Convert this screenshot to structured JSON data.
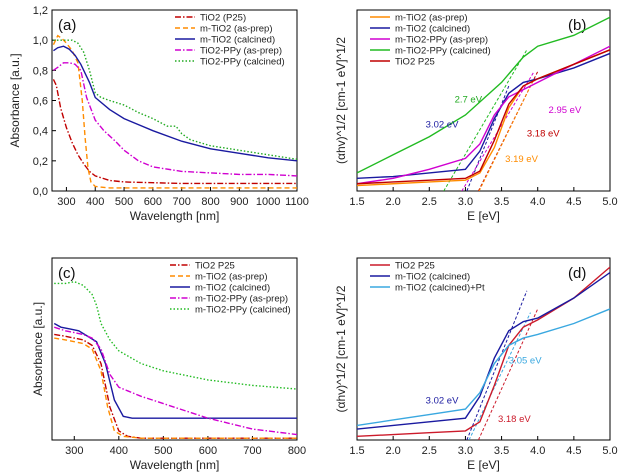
{
  "chart_data": [
    {
      "type": "line",
      "panel_label": "(a)",
      "xlabel": "Wavelength [nm]",
      "ylabel": "Absorbance [a.u.]",
      "xlim": [
        250,
        1100
      ],
      "ylim": [
        0,
        1.2
      ],
      "x_ticks": [
        300,
        400,
        500,
        600,
        700,
        800,
        900,
        1000,
        1100
      ],
      "y_ticks": [
        0.0,
        0.2,
        0.4,
        0.6,
        0.8,
        1.0,
        1.2
      ],
      "x_tick_labels": [
        "300",
        "400",
        "500",
        "600",
        "700",
        "800",
        "900",
        "1000",
        "1100"
      ],
      "y_tick_labels": [
        "0,0",
        "0,2",
        "0,4",
        "0,6",
        "0,8",
        "1,0",
        "1,2"
      ],
      "legend_position": "top-right",
      "series": [
        {
          "name": "TiO2 (P25)",
          "color": "#c00000",
          "dash": "dashdot",
          "x": [
            255,
            265,
            280,
            300,
            320,
            340,
            360,
            380,
            400,
            450,
            500,
            600,
            700,
            800,
            1100
          ],
          "values": [
            0.74,
            0.7,
            0.55,
            0.42,
            0.32,
            0.24,
            0.18,
            0.13,
            0.1,
            0.07,
            0.06,
            0.055,
            0.05,
            0.05,
            0.05
          ]
        },
        {
          "name": "m-TiO2 (as-prep)",
          "color": "#ff8c00",
          "dash": "dash",
          "x": [
            255,
            270,
            285,
            300,
            320,
            340,
            355,
            365,
            375,
            385,
            400,
            450,
            500,
            700,
            1100
          ],
          "values": [
            0.97,
            1.03,
            1.01,
            0.98,
            0.93,
            0.85,
            0.6,
            0.35,
            0.15,
            0.06,
            0.03,
            0.02,
            0.02,
            0.02,
            0.02
          ]
        },
        {
          "name": "m-TiO2 (calcined)",
          "color": "#1a1aa0",
          "dash": "solid",
          "x": [
            255,
            270,
            290,
            310,
            330,
            350,
            380,
            400,
            450,
            500,
            600,
            700,
            800,
            900,
            1000,
            1100
          ],
          "values": [
            0.93,
            0.95,
            0.96,
            0.94,
            0.9,
            0.84,
            0.72,
            0.62,
            0.54,
            0.48,
            0.4,
            0.33,
            0.28,
            0.25,
            0.22,
            0.2
          ]
        },
        {
          "name": "TiO2-PPy (as-prep)",
          "color": "#d000d0",
          "dash": "dashdot",
          "x": [
            255,
            270,
            290,
            310,
            330,
            350,
            370,
            400,
            430,
            470,
            500,
            550,
            600,
            700,
            800,
            900,
            1000,
            1100
          ],
          "values": [
            0.8,
            0.82,
            0.85,
            0.85,
            0.84,
            0.8,
            0.62,
            0.47,
            0.4,
            0.33,
            0.27,
            0.2,
            0.16,
            0.13,
            0.12,
            0.11,
            0.11,
            0.1
          ]
        },
        {
          "name": "TiO2-PPy (calcined)",
          "color": "#22aa22",
          "dash": "dot",
          "x": [
            255,
            275,
            300,
            320,
            340,
            360,
            380,
            400,
            420,
            450,
            500,
            550,
            600,
            650,
            680,
            700,
            730,
            800,
            900,
            1000,
            1100
          ],
          "values": [
            1.0,
            1.0,
            1.0,
            1.0,
            0.98,
            0.92,
            0.8,
            0.65,
            0.62,
            0.6,
            0.57,
            0.52,
            0.48,
            0.43,
            0.43,
            0.38,
            0.34,
            0.3,
            0.27,
            0.24,
            0.21
          ]
        }
      ],
      "annotations": []
    },
    {
      "type": "line",
      "panel_label": "(b)",
      "xlabel": "E [eV]",
      "ylabel": "(αhv)^1/2 [cm-1 eV]^1/2",
      "xlim": [
        1.5,
        5.0
      ],
      "ylim": [
        0,
        1
      ],
      "x_ticks": [
        1.5,
        2.0,
        2.5,
        3.0,
        3.5,
        4.0,
        4.5,
        5.0
      ],
      "x_tick_labels": [
        "1.5",
        "2.0",
        "2.5",
        "3.0",
        "3.5",
        "4.0",
        "4.5",
        "5.0"
      ],
      "legend_position": "top-left",
      "series": [
        {
          "name": "m-TiO2 (as-prep)",
          "color": "#ff8c00",
          "dash": "solid",
          "x": [
            1.5,
            2.0,
            2.5,
            3.0,
            3.2,
            3.4,
            3.6,
            3.8,
            4.0,
            4.5,
            5.0
          ],
          "values": [
            0.03,
            0.04,
            0.05,
            0.06,
            0.1,
            0.24,
            0.46,
            0.58,
            0.62,
            0.7,
            0.78
          ]
        },
        {
          "name": "m-TiO2 (calcined)",
          "color": "#1a1aa0",
          "dash": "solid",
          "x": [
            1.5,
            2.0,
            2.5,
            3.0,
            3.2,
            3.4,
            3.6,
            3.8,
            4.0,
            4.5,
            5.0
          ],
          "values": [
            0.07,
            0.08,
            0.1,
            0.12,
            0.22,
            0.4,
            0.54,
            0.6,
            0.62,
            0.68,
            0.76
          ]
        },
        {
          "name": "m-TiO2-PPy (as-prep)",
          "color": "#d000d0",
          "dash": "solid",
          "x": [
            1.5,
            2.0,
            2.5,
            3.0,
            3.2,
            3.4,
            3.6,
            3.8,
            4.0,
            4.5,
            5.0
          ],
          "values": [
            0.04,
            0.07,
            0.12,
            0.18,
            0.26,
            0.42,
            0.52,
            0.56,
            0.6,
            0.7,
            0.8
          ]
        },
        {
          "name": "m-TiO2-PPy (calcined)",
          "color": "#22bb22",
          "dash": "solid",
          "x": [
            1.5,
            2.0,
            2.5,
            3.0,
            3.5,
            3.8,
            4.0,
            4.5,
            5.0
          ],
          "values": [
            0.1,
            0.2,
            0.3,
            0.42,
            0.6,
            0.74,
            0.8,
            0.86,
            0.96
          ]
        },
        {
          "name": "TiO2 P25",
          "color": "#c00000",
          "dash": "solid",
          "x": [
            1.5,
            2.0,
            2.5,
            3.0,
            3.2,
            3.4,
            3.6,
            3.8,
            4.0,
            4.5,
            5.0
          ],
          "values": [
            0.04,
            0.05,
            0.06,
            0.07,
            0.11,
            0.28,
            0.48,
            0.58,
            0.62,
            0.7,
            0.78
          ]
        }
      ],
      "tangents": [
        {
          "color": "#22bb22",
          "x": [
            2.7,
            3.85
          ],
          "values": [
            0.0,
            0.78
          ]
        },
        {
          "color": "#1a1aa0",
          "x": [
            3.02,
            3.6
          ],
          "values": [
            0.0,
            0.58
          ]
        },
        {
          "color": "#d000d0",
          "x": [
            2.95,
            3.95
          ],
          "values": [
            0.0,
            0.66
          ]
        },
        {
          "color": "#c00000",
          "x": [
            3.18,
            4.0
          ],
          "values": [
            0.0,
            0.66
          ]
        },
        {
          "color": "#ff8c00",
          "x": [
            3.19,
            3.95
          ],
          "values": [
            0.0,
            0.62
          ]
        }
      ],
      "annotations": [
        {
          "text": "2.7 eV",
          "color": "#22aa22",
          "x": 2.85,
          "y": 0.49
        },
        {
          "text": "3.02 eV",
          "color": "#1a1aa0",
          "x": 2.45,
          "y": 0.35
        },
        {
          "text": "2.95 eV",
          "color": "#d000d0",
          "x": 4.15,
          "y": 0.43
        },
        {
          "text": "3.18 eV",
          "color": "#c00000",
          "x": 3.85,
          "y": 0.3
        },
        {
          "text": "3.19 eV",
          "color": "#ff8c00",
          "x": 3.55,
          "y": 0.16
        }
      ]
    },
    {
      "type": "line",
      "panel_label": "(c)",
      "xlabel": "Wavelength [nm]",
      "ylabel": "Absorbance [a.u.]",
      "xlim": [
        250,
        800
      ],
      "ylim": [
        0,
        1
      ],
      "x_ticks": [
        300,
        400,
        500,
        600,
        700,
        800
      ],
      "x_tick_labels": [
        "300",
        "400",
        "500",
        "600",
        "700",
        "800"
      ],
      "legend_position": "top-right",
      "series": [
        {
          "name": "TiO2 P25",
          "color": "#c00000",
          "dash": "dashdot",
          "x": [
            255,
            280,
            300,
            320,
            340,
            360,
            380,
            400,
            420,
            450,
            500,
            600,
            700,
            800
          ],
          "values": [
            0.58,
            0.57,
            0.56,
            0.55,
            0.52,
            0.42,
            0.18,
            0.05,
            0.02,
            0.01,
            0.01,
            0.01,
            0.01,
            0.01
          ]
        },
        {
          "name": "m-TiO2 (as-prep)",
          "color": "#ff8c00",
          "dash": "dash",
          "x": [
            255,
            280,
            300,
            320,
            340,
            360,
            375,
            390,
            410,
            450,
            500,
            600,
            700,
            800
          ],
          "values": [
            0.56,
            0.55,
            0.54,
            0.53,
            0.5,
            0.38,
            0.18,
            0.05,
            0.02,
            0.01,
            0.01,
            0.01,
            0.01,
            0.01
          ]
        },
        {
          "name": "m-TiO2 (calcined)",
          "color": "#1a1aa0",
          "dash": "solid",
          "x": [
            255,
            270,
            290,
            310,
            330,
            350,
            370,
            390,
            410,
            430,
            450,
            500,
            600,
            700,
            800
          ],
          "values": [
            0.64,
            0.62,
            0.61,
            0.6,
            0.57,
            0.54,
            0.42,
            0.22,
            0.13,
            0.12,
            0.12,
            0.12,
            0.12,
            0.12,
            0.12
          ]
        },
        {
          "name": "m-TiO2-PPy (as-prep)",
          "color": "#d000d0",
          "dash": "dashdot",
          "x": [
            255,
            280,
            300,
            320,
            340,
            360,
            380,
            400,
            450,
            500,
            600,
            700,
            800
          ],
          "values": [
            0.62,
            0.6,
            0.59,
            0.58,
            0.56,
            0.5,
            0.36,
            0.29,
            0.24,
            0.2,
            0.12,
            0.06,
            0.03
          ]
        },
        {
          "name": "m-TiO2-PPy (calcined)",
          "color": "#22bb22",
          "dash": "dot",
          "x": [
            255,
            280,
            300,
            320,
            340,
            350,
            360,
            380,
            400,
            450,
            500,
            600,
            700,
            800
          ],
          "values": [
            0.86,
            0.86,
            0.87,
            0.85,
            0.8,
            0.74,
            0.64,
            0.55,
            0.49,
            0.42,
            0.38,
            0.33,
            0.3,
            0.28
          ]
        }
      ],
      "annotations": []
    },
    {
      "type": "line",
      "panel_label": "(d)",
      "xlabel": "E [eV]",
      "ylabel": "(αhv)^1/2 [cm-1 eV]^1/2",
      "xlim": [
        1.5,
        5.0
      ],
      "ylim": [
        0,
        1
      ],
      "x_ticks": [
        1.5,
        2.0,
        2.5,
        3.0,
        3.5,
        4.0,
        4.5,
        5.0
      ],
      "x_tick_labels": [
        "1.5",
        "2.0",
        "2.5",
        "3.0",
        "3.5",
        "4.0",
        "4.5",
        "5.0"
      ],
      "legend_position": "top-left",
      "series": [
        {
          "name": "TiO2 P25",
          "color": "#cc1a2a",
          "dash": "solid",
          "x": [
            1.5,
            2.0,
            2.5,
            3.0,
            3.2,
            3.4,
            3.6,
            3.8,
            4.0,
            4.5,
            5.0
          ],
          "values": [
            0.02,
            0.03,
            0.04,
            0.05,
            0.1,
            0.3,
            0.52,
            0.62,
            0.66,
            0.78,
            0.95
          ]
        },
        {
          "name": "m-TiO2 (calcined)",
          "color": "#1a1aa0",
          "dash": "solid",
          "x": [
            1.5,
            2.0,
            2.5,
            3.0,
            3.2,
            3.4,
            3.6,
            3.8,
            4.0,
            4.5,
            5.0
          ],
          "values": [
            0.06,
            0.08,
            0.1,
            0.12,
            0.24,
            0.45,
            0.6,
            0.65,
            0.67,
            0.78,
            0.92
          ]
        },
        {
          "name": "m-TiO2 (calcined)+Pt",
          "color": "#3aa8e0",
          "dash": "solid",
          "x": [
            1.5,
            2.0,
            2.5,
            3.0,
            3.2,
            3.4,
            3.6,
            3.8,
            4.0,
            4.5,
            5.0
          ],
          "values": [
            0.08,
            0.11,
            0.14,
            0.17,
            0.26,
            0.42,
            0.52,
            0.56,
            0.58,
            0.64,
            0.72
          ]
        }
      ],
      "tangents": [
        {
          "color": "#1a1aa0",
          "x": [
            3.02,
            3.85
          ],
          "values": [
            0.0,
            0.82
          ]
        },
        {
          "color": "#3aa8e0",
          "x": [
            3.05,
            3.9
          ],
          "values": [
            0.0,
            0.7
          ]
        },
        {
          "color": "#cc1a2a",
          "x": [
            3.18,
            4.0
          ],
          "values": [
            0.0,
            0.72
          ]
        }
      ],
      "annotations": [
        {
          "text": "3.02 eV",
          "color": "#1a1aa0",
          "x": 2.45,
          "y": 0.2
        },
        {
          "text": "3.05 eV",
          "color": "#3aa8e0",
          "x": 3.6,
          "y": 0.42
        },
        {
          "text": "3.18 eV",
          "color": "#cc1a2a",
          "x": 3.45,
          "y": 0.1
        }
      ]
    }
  ]
}
